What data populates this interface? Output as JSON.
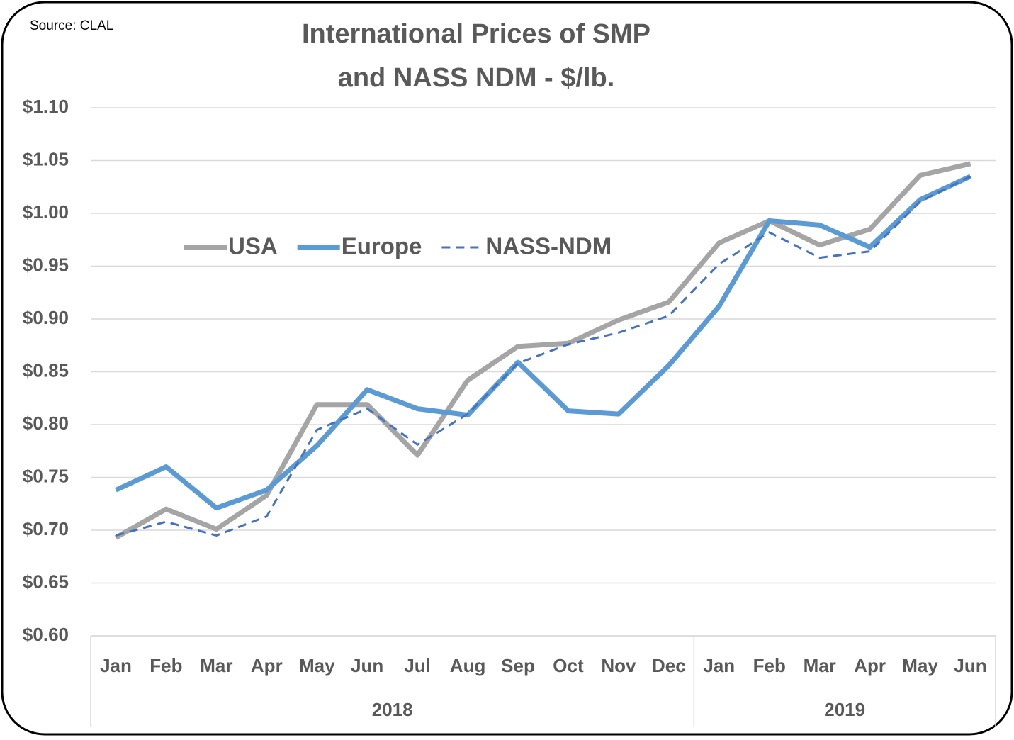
{
  "chart_data": {
    "type": "line",
    "source": "Source: CLAL",
    "title": [
      "International Prices of SMP",
      "and NASS NDM - $/lb."
    ],
    "category_groups": [
      {
        "name": "2018",
        "categories": [
          "Jan",
          "Feb",
          "Mar",
          "Apr",
          "May",
          "Jun",
          "Jul",
          "Aug",
          "Sep",
          "Oct",
          "Nov",
          "Dec"
        ]
      },
      {
        "name": "2019",
        "categories": [
          "Jan",
          "Feb",
          "Mar",
          "Apr",
          "May",
          "Jun"
        ]
      }
    ],
    "series": [
      {
        "name": "USA",
        "color": "#a5a5a5",
        "dashed": false,
        "values": [
          0.693,
          0.72,
          0.701,
          0.733,
          0.819,
          0.819,
          0.771,
          0.842,
          0.874,
          0.877,
          0.899,
          0.916,
          0.972,
          0.993,
          0.97,
          0.985,
          1.036,
          1.047
        ]
      },
      {
        "name": "Europe",
        "color": "#5b9bd5",
        "dashed": false,
        "values": [
          0.738,
          0.76,
          0.721,
          0.738,
          0.78,
          0.833,
          0.815,
          0.809,
          0.859,
          0.813,
          0.81,
          0.856,
          0.912,
          0.993,
          0.989,
          0.968,
          1.013,
          1.035
        ]
      },
      {
        "name": "NASS-NDM",
        "color": "#4472c4",
        "dashed": true,
        "values": [
          0.695,
          0.708,
          0.695,
          0.713,
          0.795,
          0.815,
          0.781,
          0.81,
          0.858,
          0.876,
          0.887,
          0.903,
          0.952,
          0.982,
          0.958,
          0.964,
          1.011,
          1.035
        ]
      }
    ],
    "ylim": [
      0.6,
      1.1
    ],
    "yticks": [
      {
        "value": 0.6,
        "label": "$0.60"
      },
      {
        "value": 0.65,
        "label": "$0.65"
      },
      {
        "value": 0.7,
        "label": "$0.70"
      },
      {
        "value": 0.75,
        "label": "$0.75"
      },
      {
        "value": 0.8,
        "label": "$0.80"
      },
      {
        "value": 0.85,
        "label": "$0.85"
      },
      {
        "value": 0.9,
        "label": "$0.90"
      },
      {
        "value": 0.95,
        "label": "$0.95"
      },
      {
        "value": 1.0,
        "label": "$1.00"
      },
      {
        "value": 1.05,
        "label": "$1.05"
      },
      {
        "value": 1.1,
        "label": "$1.10"
      }
    ],
    "grid": true
  }
}
